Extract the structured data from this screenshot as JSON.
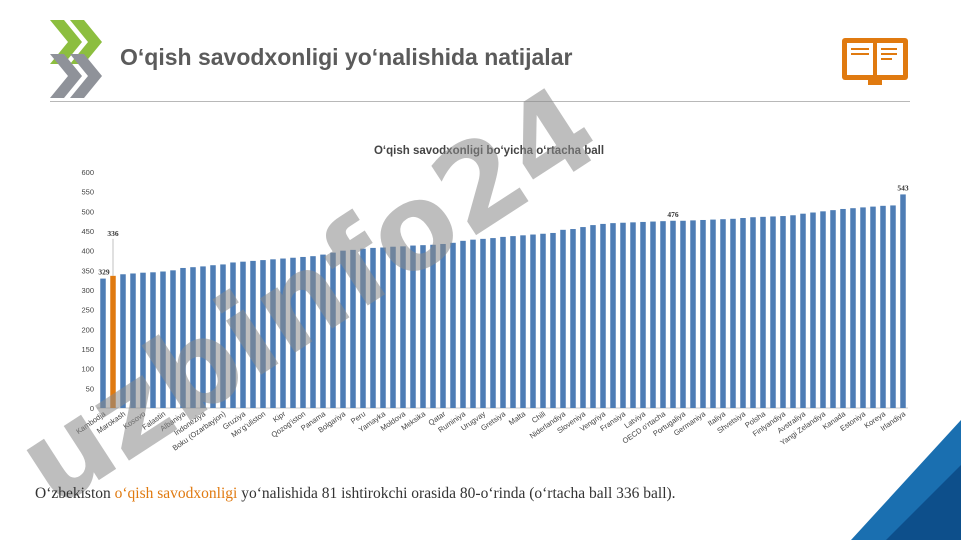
{
  "header": {
    "title": "O‘qish savodxonligi yo‘nalishida natijalar",
    "logo_icon": "oecd-chevron-logo-icon",
    "book_icon": "open-book-icon"
  },
  "caption": {
    "before": "O‘zbekiston ",
    "highlight": "o‘qish savodxonligi",
    "after": " yo‘nalishida 81 ishtirokchi orasida 80-o‘rinda (o‘rtacha ball 336 ball)."
  },
  "watermark": "uzbinfo24",
  "colors": {
    "bar": "#4e7db5",
    "highlight_bar": "#e07a10",
    "title_text": "#5b5b5b",
    "logo_green": "#8cbe3f",
    "logo_gray": "#8f9299",
    "corner_blue": "#1a6fb0",
    "corner_dark": "#0d4f8b"
  },
  "chart_data": {
    "type": "bar",
    "title": "O‘qish savodxonligi bo‘yicha o‘rtacha ball",
    "xlabel": "",
    "ylabel": "",
    "ylim": [
      0,
      600
    ],
    "yticks": [
      0,
      50,
      100,
      150,
      200,
      250,
      300,
      350,
      400,
      450,
      500,
      550,
      600
    ],
    "grid": false,
    "categories": [
      "Kambodja",
      "",
      "Marokash",
      "",
      "Kosovo",
      "",
      "Falastin",
      "",
      "Albaniya",
      "",
      "Indoneziya",
      "",
      "Boku (Ozarbayjon)",
      "",
      "Gruziya",
      "",
      "Mo‘g‘uliston",
      "",
      "Kipr",
      "",
      "Qozog‘iston",
      "",
      "Panama",
      "",
      "Bolgariya",
      "",
      "Peru",
      "",
      "Yamayka",
      "",
      "Moldova",
      "",
      "Meksika",
      "",
      "Qatar",
      "",
      "Ruminiya",
      "",
      "Urugvay",
      "",
      "Gretsiya",
      "",
      "Malta",
      "",
      "Chili",
      "",
      "Niderlandiya",
      "",
      "Sloveniya",
      "",
      "Vengriya",
      "",
      "Fransiya",
      "",
      "Latviya",
      "",
      "OECD o‘rtacha",
      "",
      "Portugaliya",
      "",
      "Germaniya",
      "",
      "Italiya",
      "",
      "Shvetsiya",
      "",
      "Polsha",
      "",
      "Finlyandiya",
      "",
      "Avstraliya",
      "",
      "Yangi Zelandiya",
      "",
      "Kanada",
      "",
      "Estoniya",
      "",
      "Koreya",
      "",
      "Irlandiya"
    ],
    "values": [
      329,
      336,
      340,
      342,
      344,
      345,
      347,
      350,
      356,
      358,
      360,
      363,
      365,
      370,
      372,
      374,
      376,
      378,
      380,
      382,
      384,
      386,
      390,
      395,
      400,
      402,
      405,
      407,
      408,
      410,
      411,
      413,
      414,
      415,
      417,
      420,
      425,
      428,
      430,
      432,
      435,
      437,
      439,
      441,
      443,
      445,
      453,
      455,
      460,
      465,
      468,
      470,
      471,
      472,
      473,
      474,
      475,
      476,
      476,
      477,
      478,
      479,
      480,
      481,
      483,
      485,
      486,
      487,
      488,
      490,
      494,
      497,
      500,
      503,
      506,
      508,
      510,
      512,
      514,
      515,
      543
    ],
    "data_labels": [
      {
        "index": 0,
        "text": "329"
      },
      {
        "index": 1,
        "text": "336"
      },
      {
        "index": 57,
        "text": "476"
      },
      {
        "index": 80,
        "text": "543"
      }
    ],
    "highlight_index": 1
  }
}
